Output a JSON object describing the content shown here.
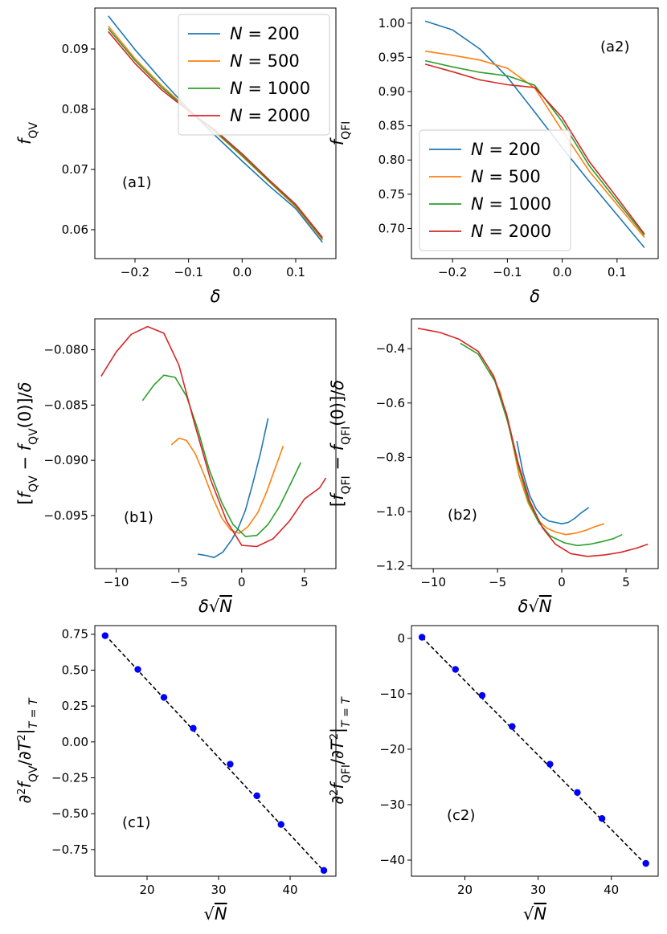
{
  "figure": {
    "colors": {
      "N200": "#1f77b4",
      "N500": "#ff7f0e",
      "N1000": "#2ca02c",
      "N2000": "#d62728",
      "points": "#0000ff",
      "fit": "#000000"
    }
  },
  "chart_data": [
    {
      "id": "a1",
      "type": "line",
      "annotation": "(a1)",
      "xlabel": "δ",
      "ylabel": "f_QV",
      "xlim": [
        -0.275,
        0.175
      ],
      "ylim": [
        0.0552,
        0.0968
      ],
      "xticks": [
        -0.2,
        -0.1,
        0.0,
        0.1
      ],
      "xtick_labels": [
        "−0.2",
        "−0.1",
        "0.0",
        "0.1"
      ],
      "yticks": [
        0.06,
        0.07,
        0.08,
        0.09
      ],
      "ytick_labels": [
        "0.06",
        "0.07",
        "0.08",
        "0.09"
      ],
      "legend": {
        "location": "top-right",
        "entries": [
          "N = 200",
          "N = 500",
          "N = 1000",
          "N = 2000"
        ]
      },
      "series": [
        {
          "name": "N = 200",
          "color": "#1f77b4",
          "x": [
            -0.25,
            -0.2,
            -0.15,
            -0.1,
            -0.05,
            0.0,
            0.05,
            0.1,
            0.15
          ],
          "y": [
            0.0955,
            0.0899,
            0.0848,
            0.08,
            0.0756,
            0.0714,
            0.0673,
            0.0635,
            0.0579
          ]
        },
        {
          "name": "N = 500",
          "color": "#ff7f0e",
          "x": [
            -0.25,
            -0.2,
            -0.15,
            -0.1,
            -0.05,
            0.0,
            0.05,
            0.1,
            0.15
          ],
          "y": [
            0.0938,
            0.0884,
            0.0839,
            0.0799,
            0.0762,
            0.0722,
            0.068,
            0.0638,
            0.0583
          ]
        },
        {
          "name": "N = 1000",
          "color": "#2ca02c",
          "x": [
            -0.25,
            -0.2,
            -0.15,
            -0.1,
            -0.05,
            0.0,
            0.05,
            0.1,
            0.15
          ],
          "y": [
            0.0934,
            0.0881,
            0.0836,
            0.0798,
            0.0763,
            0.0723,
            0.0681,
            0.064,
            0.0585
          ]
        },
        {
          "name": "N = 2000",
          "color": "#d62728",
          "x": [
            -0.25,
            -0.2,
            -0.15,
            -0.1,
            -0.05,
            0.0,
            0.05,
            0.1,
            0.15
          ],
          "y": [
            0.0929,
            0.0876,
            0.0832,
            0.0797,
            0.0765,
            0.0726,
            0.0683,
            0.0642,
            0.0587
          ]
        }
      ]
    },
    {
      "id": "a2",
      "type": "line",
      "annotation": "(a2)",
      "xlabel": "δ",
      "ylabel": "f_QFI",
      "xlim": [
        -0.275,
        0.175
      ],
      "ylim": [
        0.656,
        1.022
      ],
      "xticks": [
        -0.2,
        -0.1,
        0.0,
        0.1
      ],
      "xtick_labels": [
        "−0.2",
        "−0.1",
        "0.0",
        "0.1"
      ],
      "yticks": [
        0.7,
        0.75,
        0.8,
        0.85,
        0.9,
        0.95,
        1.0
      ],
      "ytick_labels": [
        "0.70",
        "0.75",
        "0.80",
        "0.85",
        "0.90",
        "0.95",
        "1.00"
      ],
      "legend": {
        "location": "lower-left",
        "entries": [
          "N = 200",
          "N = 500",
          "N = 1000",
          "N = 2000"
        ]
      },
      "series": [
        {
          "name": "N = 200",
          "color": "#1f77b4",
          "x": [
            -0.25,
            -0.2,
            -0.15,
            -0.1,
            -0.05,
            0.0,
            0.05,
            0.1,
            0.15
          ],
          "y": [
            1.003,
            0.99,
            0.962,
            0.921,
            0.87,
            0.818,
            0.768,
            0.72,
            0.672
          ]
        },
        {
          "name": "N = 500",
          "color": "#ff7f0e",
          "x": [
            -0.25,
            -0.2,
            -0.15,
            -0.1,
            -0.05,
            0.0,
            0.05,
            0.1,
            0.15
          ],
          "y": [
            0.959,
            0.953,
            0.946,
            0.934,
            0.905,
            0.843,
            0.783,
            0.735,
            0.687
          ]
        },
        {
          "name": "N = 1000",
          "color": "#2ca02c",
          "x": [
            -0.25,
            -0.2,
            -0.15,
            -0.1,
            -0.05,
            0.0,
            0.05,
            0.1,
            0.15
          ],
          "y": [
            0.945,
            0.936,
            0.928,
            0.923,
            0.909,
            0.856,
            0.791,
            0.74,
            0.69
          ]
        },
        {
          "name": "N = 2000",
          "color": "#d62728",
          "x": [
            -0.25,
            -0.2,
            -0.15,
            -0.1,
            -0.05,
            0.0,
            0.05,
            0.1,
            0.15
          ],
          "y": [
            0.94,
            0.929,
            0.917,
            0.91,
            0.906,
            0.862,
            0.797,
            0.745,
            0.692
          ]
        }
      ]
    },
    {
      "id": "b1",
      "type": "line",
      "annotation": "(b1)",
      "xlabel": "δ√N",
      "ylabel": "[f_QV − f_QV(0)]/δ",
      "xlim": [
        -11.7,
        7.5
      ],
      "ylim": [
        -0.0998,
        -0.0772
      ],
      "xticks": [
        -10,
        -5,
        0,
        5
      ],
      "xtick_labels": [
        "−10",
        "−5",
        "0",
        "5"
      ],
      "yticks": [
        -0.095,
        -0.09,
        -0.085,
        -0.08
      ],
      "ytick_labels": [
        "−0.095",
        "−0.090",
        "−0.085",
        "−0.080"
      ],
      "series": [
        {
          "name": "N = 200",
          "color": "#1f77b4",
          "x": [
            -3.5,
            -2.9,
            -2.2,
            -1.5,
            -0.8,
            -0.3,
            0.3,
            0.9,
            1.5,
            2.1
          ],
          "y": [
            -0.0985,
            -0.0986,
            -0.0988,
            -0.0983,
            -0.0972,
            -0.0962,
            -0.0945,
            -0.092,
            -0.0893,
            -0.0862
          ]
        },
        {
          "name": "N = 500",
          "color": "#ff7f0e",
          "x": [
            -5.6,
            -5.0,
            -4.4,
            -3.7,
            -3.0,
            -2.3,
            -1.6,
            -0.9,
            -0.2,
            0.5,
            1.3,
            2.0,
            2.7,
            3.3
          ],
          "y": [
            -0.0886,
            -0.088,
            -0.0882,
            -0.0894,
            -0.0913,
            -0.0934,
            -0.0952,
            -0.0963,
            -0.0966,
            -0.096,
            -0.0947,
            -0.0928,
            -0.0906,
            -0.0887
          ]
        },
        {
          "name": "N = 1000",
          "color": "#2ca02c",
          "x": [
            -7.9,
            -7.0,
            -6.2,
            -5.3,
            -4.4,
            -3.5,
            -2.6,
            -1.6,
            -0.7,
            0.3,
            1.2,
            2.1,
            3.0,
            3.9,
            4.7
          ],
          "y": [
            -0.0846,
            -0.0832,
            -0.0823,
            -0.0825,
            -0.0842,
            -0.0872,
            -0.0908,
            -0.0938,
            -0.0958,
            -0.0969,
            -0.0968,
            -0.0958,
            -0.0942,
            -0.0921,
            -0.0902
          ]
        },
        {
          "name": "N = 2000",
          "color": "#d62728",
          "x": [
            -11.2,
            -10.0,
            -8.8,
            -7.5,
            -6.2,
            -5.0,
            -3.8,
            -2.5,
            -1.2,
            0.0,
            1.2,
            2.5,
            3.8,
            5.0,
            6.2,
            6.7
          ],
          "y": [
            -0.0824,
            -0.0802,
            -0.0786,
            -0.0779,
            -0.0785,
            -0.0814,
            -0.0865,
            -0.0917,
            -0.0955,
            -0.0977,
            -0.0978,
            -0.0971,
            -0.0955,
            -0.0935,
            -0.0925,
            -0.0916
          ]
        }
      ]
    },
    {
      "id": "b2",
      "type": "line",
      "annotation": "(b2)",
      "xlabel": "δ√N",
      "ylabel": "[f_QFI − f_QFI(0)]/δ",
      "xlim": [
        -11.7,
        7.5
      ],
      "ylim": [
        -1.21,
        -0.29
      ],
      "xticks": [
        -10,
        -5,
        0,
        5
      ],
      "xtick_labels": [
        "−10",
        "−5",
        "0",
        "5"
      ],
      "yticks": [
        -1.2,
        -1.0,
        -0.8,
        -0.6,
        -0.4
      ],
      "ytick_labels": [
        "−1.2",
        "−1.0",
        "−0.8",
        "−0.6",
        "−0.4"
      ],
      "series": [
        {
          "name": "N = 200",
          "color": "#1f77b4",
          "x": [
            -3.5,
            -3.0,
            -2.5,
            -2.0,
            -1.5,
            -1.0,
            -0.5,
            0.0,
            0.5,
            1.0,
            1.5,
            2.1
          ],
          "y": [
            -0.74,
            -0.86,
            -0.94,
            -0.99,
            -1.02,
            -1.035,
            -1.04,
            -1.045,
            -1.04,
            -1.025,
            -1.005,
            -0.985
          ]
        },
        {
          "name": "N = 500",
          "color": "#ff7f0e",
          "x": [
            -5.6,
            -4.8,
            -4.0,
            -3.3,
            -2.6,
            -1.9,
            -1.2,
            -0.5,
            0.3,
            1.0,
            1.8,
            2.6,
            3.3
          ],
          "y": [
            -0.48,
            -0.56,
            -0.71,
            -0.87,
            -0.97,
            -1.03,
            -1.06,
            -1.075,
            -1.085,
            -1.08,
            -1.07,
            -1.055,
            -1.045
          ]
        },
        {
          "name": "N = 1000",
          "color": "#2ca02c",
          "x": [
            -7.9,
            -6.5,
            -5.2,
            -4.2,
            -3.4,
            -2.6,
            -1.8,
            -0.9,
            0.2,
            1.2,
            2.2,
            3.2,
            4.0,
            4.7
          ],
          "y": [
            -0.38,
            -0.42,
            -0.52,
            -0.67,
            -0.83,
            -0.96,
            -1.04,
            -1.09,
            -1.115,
            -1.125,
            -1.12,
            -1.11,
            -1.1,
            -1.085
          ]
        },
        {
          "name": "N = 2000",
          "color": "#d62728",
          "x": [
            -11.2,
            -9.5,
            -8.0,
            -6.5,
            -5.3,
            -4.3,
            -3.4,
            -2.5,
            -1.5,
            -0.5,
            0.7,
            2.0,
            3.3,
            4.6,
            5.8,
            6.7
          ],
          "y": [
            -0.325,
            -0.34,
            -0.365,
            -0.41,
            -0.5,
            -0.64,
            -0.82,
            -0.96,
            -1.06,
            -1.12,
            -1.155,
            -1.165,
            -1.16,
            -1.15,
            -1.135,
            -1.12
          ]
        }
      ]
    },
    {
      "id": "c1",
      "type": "scatter",
      "annotation": "(c1)",
      "xlabel": "√N",
      "ylabel": "∂²f_QV/∂T²|_{T=T_c}",
      "xlim": [
        12.7,
        46.4
      ],
      "ylim": [
        -0.935,
        0.81
      ],
      "xticks": [
        20,
        30,
        40
      ],
      "xtick_labels": [
        "20",
        "30",
        "40"
      ],
      "yticks": [
        -0.75,
        -0.5,
        -0.25,
        0.0,
        0.25,
        0.5,
        0.75
      ],
      "ytick_labels": [
        "−0.75",
        "−0.50",
        "−0.25",
        "0.00",
        "0.25",
        "0.50",
        "0.75"
      ],
      "points": {
        "x": [
          14.14,
          18.71,
          22.36,
          26.46,
          31.62,
          35.36,
          38.73,
          44.72
        ],
        "y": [
          0.74,
          0.505,
          0.31,
          0.095,
          -0.155,
          -0.375,
          -0.575,
          -0.895
        ]
      },
      "fit_line": {
        "x": [
          14.14,
          44.72
        ],
        "y": [
          0.745,
          -0.9
        ]
      }
    },
    {
      "id": "c2",
      "type": "scatter",
      "annotation": "(c2)",
      "xlabel": "√N",
      "ylabel": "∂²f_QFI/∂T²|_{T=T_c}",
      "xlim": [
        12.7,
        46.4
      ],
      "ylim": [
        -42.9,
        2.3
      ],
      "xticks": [
        20,
        30,
        40
      ],
      "xtick_labels": [
        "20",
        "30",
        "40"
      ],
      "yticks": [
        -40,
        -30,
        -20,
        -10,
        0
      ],
      "ytick_labels": [
        "−40",
        "−30",
        "−20",
        "−10",
        "0"
      ],
      "points": {
        "x": [
          14.14,
          18.71,
          22.36,
          26.46,
          31.62,
          35.36,
          38.73,
          44.72
        ],
        "y": [
          0.2,
          -5.6,
          -10.3,
          -15.9,
          -22.7,
          -27.8,
          -32.5,
          -40.6
        ]
      },
      "fit_line": {
        "x": [
          14.14,
          44.72
        ],
        "y": [
          0.2,
          -40.8
        ]
      }
    }
  ]
}
